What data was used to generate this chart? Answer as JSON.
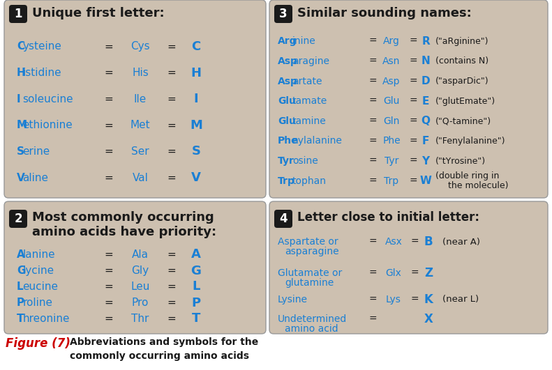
{
  "box_color": "#cdc0b0",
  "blue_color": "#1a7fd4",
  "black_color": "#1a1a1a",
  "red_color": "#cc0000",
  "white_color": "#ffffff",
  "figure_caption": "Abbreviations and symbols for the\ncommonly occurring amino acids",
  "figure_label": "Figure (7)",
  "section1_title": "Unique first letter:",
  "section1_rows": [
    [
      "Cysteine",
      "Cys",
      "C"
    ],
    [
      "Histidine",
      "His",
      "H"
    ],
    [
      "Isoleucine",
      "Ile",
      "I"
    ],
    [
      "Methionine",
      "Met",
      "M"
    ],
    [
      "Serine",
      "Ser",
      "S"
    ],
    [
      "Valine",
      "Val",
      "V"
    ]
  ],
  "section2_title": "Most commonly occurring\namino acids have priority:",
  "section2_rows": [
    [
      "Alanine",
      "Ala",
      "A"
    ],
    [
      "Glycine",
      "Gly",
      "G"
    ],
    [
      "Leucine",
      "Leu",
      "L"
    ],
    [
      "Proline",
      "Pro",
      "P"
    ],
    [
      "Threonine",
      "Thr",
      "T"
    ]
  ],
  "section3_title": "Similar sounding names:",
  "section3_rows": [
    [
      "Arg",
      "inine",
      "Arg",
      "R",
      "(\"aRginine\")"
    ],
    [
      "Asp",
      "aragine",
      "Asn",
      "N",
      "(contains N)"
    ],
    [
      "Asp",
      "artate",
      "Asp",
      "D",
      "(\"asparDic\")"
    ],
    [
      "Glu",
      "tamate",
      "Glu",
      "E",
      "(\"glutEmate\")"
    ],
    [
      "Glu",
      "tamine",
      "Gln",
      "Q",
      "(\"Q-tamine\")"
    ],
    [
      "Phe",
      "nylalanine",
      "Phe",
      "F",
      "(\"Fenylalanine\")"
    ],
    [
      "Tyr",
      "osine",
      "Tyr",
      "Y",
      "(\"tYrosine\")"
    ],
    [
      "Trp",
      "tophan",
      "Trp",
      "W",
      "(double ring in\nthe molecule)"
    ]
  ],
  "section4_title": "Letter close to initial letter:",
  "section4_rows": [
    [
      "Aspartate or",
      "asparagine",
      "Asx",
      "B",
      "(near A)"
    ],
    [
      "Glutamate or",
      "glutamine",
      "Glx",
      "Z",
      ""
    ],
    [
      "Lysine",
      "",
      "Lys",
      "K",
      "(near L)"
    ],
    [
      "Undetermined",
      "amino acid",
      "",
      "X",
      ""
    ]
  ]
}
